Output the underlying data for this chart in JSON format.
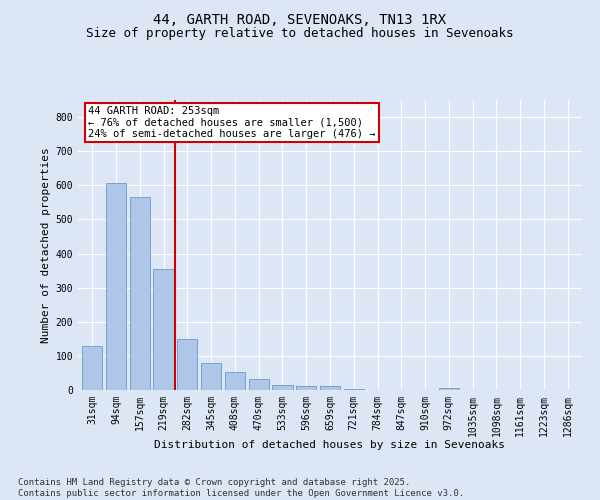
{
  "title_line1": "44, GARTH ROAD, SEVENOAKS, TN13 1RX",
  "title_line2": "Size of property relative to detached houses in Sevenoaks",
  "xlabel": "Distribution of detached houses by size in Sevenoaks",
  "ylabel": "Number of detached properties",
  "categories": [
    "31sqm",
    "94sqm",
    "157sqm",
    "219sqm",
    "282sqm",
    "345sqm",
    "408sqm",
    "470sqm",
    "533sqm",
    "596sqm",
    "659sqm",
    "721sqm",
    "784sqm",
    "847sqm",
    "910sqm",
    "972sqm",
    "1035sqm",
    "1098sqm",
    "1161sqm",
    "1223sqm",
    "1286sqm"
  ],
  "values": [
    130,
    607,
    565,
    355,
    150,
    78,
    52,
    32,
    15,
    12,
    12,
    4,
    0,
    0,
    0,
    6,
    0,
    0,
    0,
    0,
    0
  ],
  "bar_color": "#aec6e8",
  "bar_edge_color": "#5a8fc2",
  "vline_x_index": 3.5,
  "vline_color": "#cc0000",
  "annotation_text": "44 GARTH ROAD: 253sqm\n← 76% of detached houses are smaller (1,500)\n24% of semi-detached houses are larger (476) →",
  "annotation_box_color": "#cc0000",
  "annotation_text_color": "#000000",
  "ylim": [
    0,
    850
  ],
  "yticks": [
    0,
    100,
    200,
    300,
    400,
    500,
    600,
    700,
    800
  ],
  "footnote_line1": "Contains HM Land Registry data © Crown copyright and database right 2025.",
  "footnote_line2": "Contains public sector information licensed under the Open Government Licence v3.0.",
  "bg_color": "#dce6f5",
  "plot_bg_color": "#dce6f5",
  "title_fontsize": 10,
  "subtitle_fontsize": 9,
  "axis_label_fontsize": 8,
  "tick_fontsize": 7,
  "annotation_fontsize": 7.5,
  "footnote_fontsize": 6.5
}
